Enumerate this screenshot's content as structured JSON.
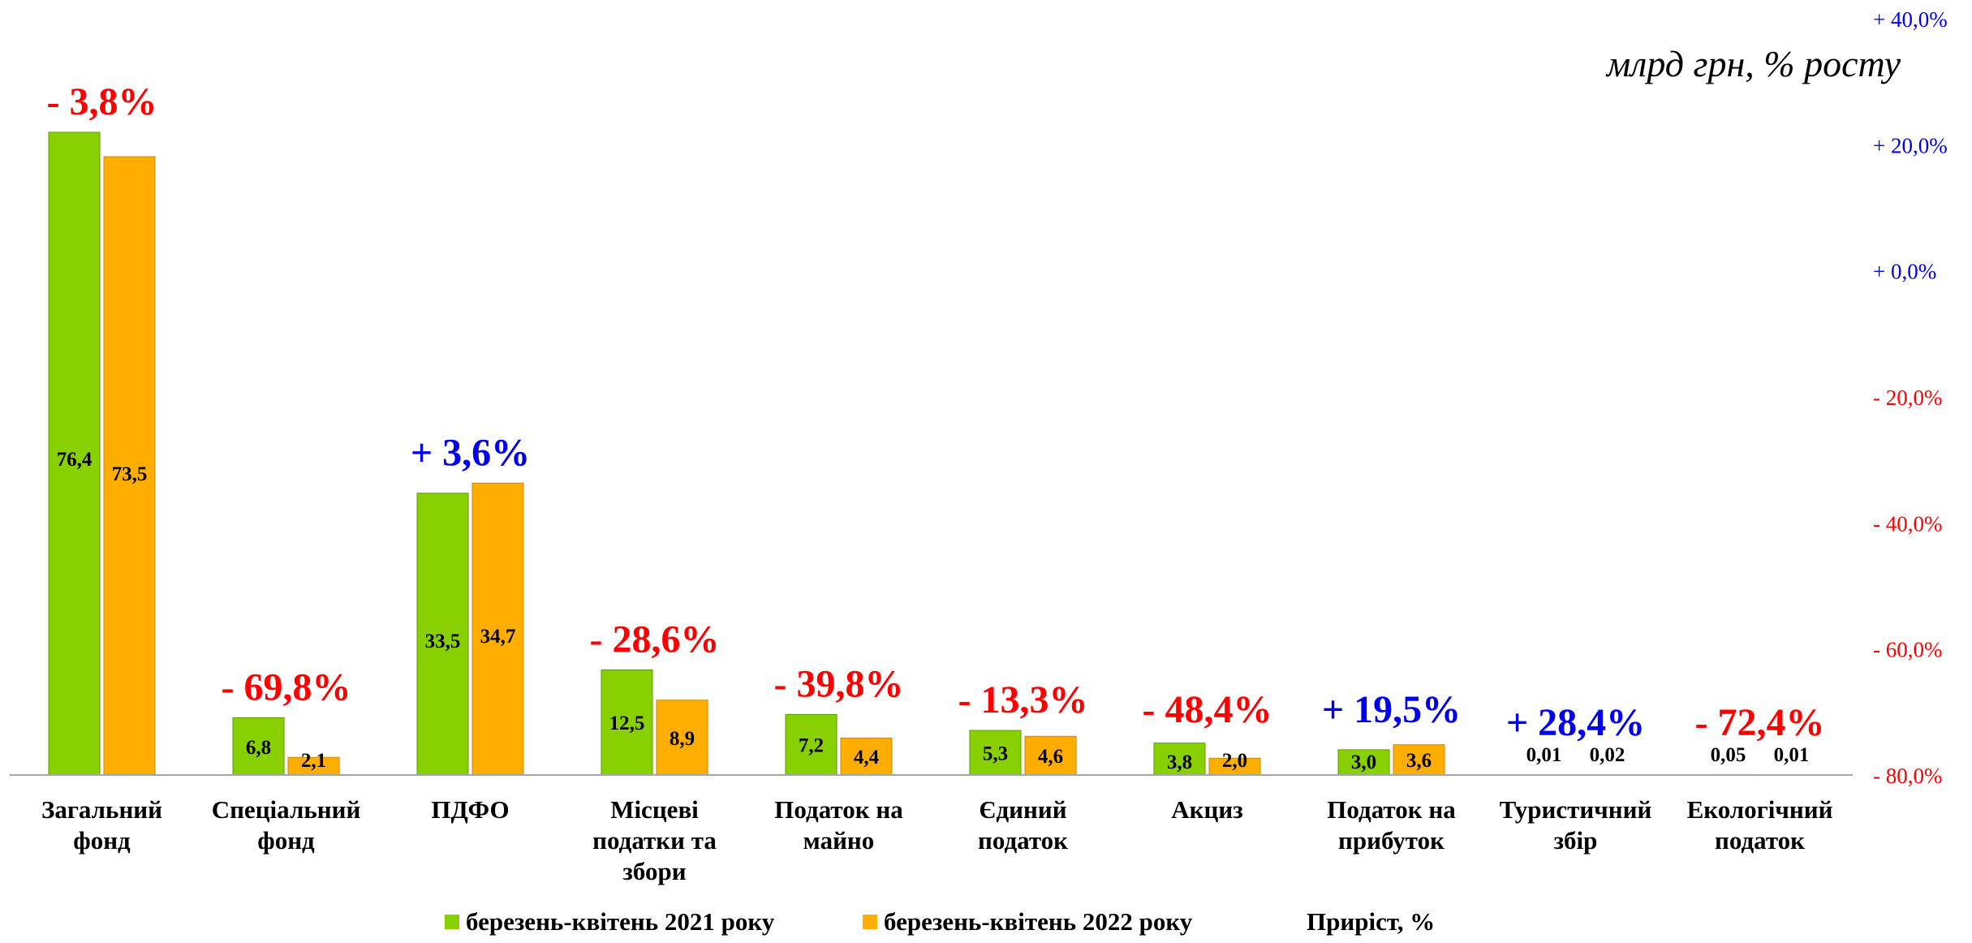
{
  "unit_label": "млрд грн, % росту",
  "colors": {
    "series_2021": "#88D000",
    "series_2022": "#FFAE00",
    "growth_positive": "#0000EE",
    "growth_negative": "#FF0000",
    "axis_line": "#A6A6A6"
  },
  "legend": {
    "series_2021": "березень-квітень 2021 року",
    "series_2022": "березень-квітень 2022 року",
    "growth": "Приріст, %"
  },
  "chart_data": {
    "type": "bar",
    "categories": [
      [
        "Загальний",
        "фонд"
      ],
      [
        "Спеціальний",
        "фонд"
      ],
      [
        "ПДФО"
      ],
      [
        "Місцеві",
        "податки та",
        "збори"
      ],
      [
        "Податок на",
        "майно"
      ],
      [
        "Єдиний",
        "податок"
      ],
      [
        "Акциз"
      ],
      [
        "Податок на",
        "прибуток"
      ],
      [
        "Туристичний",
        "збір"
      ],
      [
        "Екологічний",
        "податок"
      ]
    ],
    "series": [
      {
        "name": "березень-квітень 2021 року",
        "values": [
          76.4,
          6.8,
          33.5,
          12.5,
          7.2,
          5.3,
          3.8,
          3.0,
          0.01,
          0.05
        ],
        "labels": [
          "76,4",
          "6,8",
          "33,5",
          "12,5",
          "7,2",
          "5,3",
          "3,8",
          "3,0",
          "0,01",
          "0,05"
        ]
      },
      {
        "name": "березень-квітень 2022 року",
        "values": [
          73.5,
          2.1,
          34.7,
          8.9,
          4.4,
          4.6,
          2.0,
          3.6,
          0.02,
          0.01
        ],
        "labels": [
          "73,5",
          "2,1",
          "34,7",
          "8,9",
          "4,4",
          "4,6",
          "2,0",
          "3,6",
          "0,02",
          "0,01"
        ]
      },
      {
        "name": "Приріст, %",
        "values": [
          -3.8,
          -69.8,
          3.6,
          -28.6,
          -39.8,
          -13.3,
          -48.4,
          19.5,
          28.4,
          -72.4
        ],
        "labels": [
          "- 3,8%",
          "- 69,8%",
          "+ 3,6%",
          "- 28,6%",
          "- 39,8%",
          "- 13,3%",
          "- 48,4%",
          "+ 19,5%",
          "+ 28,4%",
          "- 72,4%"
        ]
      }
    ],
    "secondary_axis": {
      "ylim": [
        -80,
        40
      ],
      "ticks": [
        40,
        20,
        0,
        -20,
        -40,
        -60,
        -80
      ],
      "tick_labels": [
        "+ 40,0%",
        "+ 20,0%",
        "+ 0,0%",
        "- 20,0%",
        "- 40,0%",
        "- 60,0%",
        "- 80,0%"
      ]
    },
    "primary_ylim": [
      0,
      76.4
    ],
    "grid": false,
    "legend_position": "bottom"
  }
}
